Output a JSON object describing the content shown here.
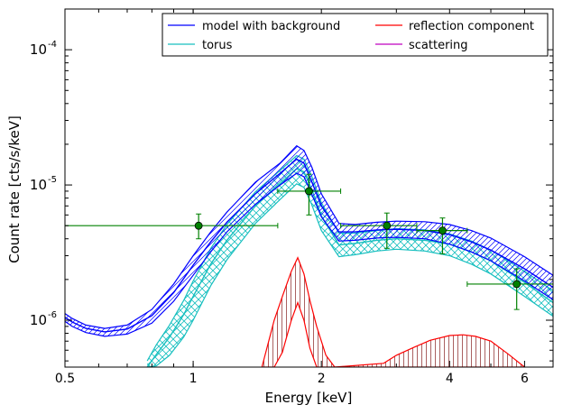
{
  "chart_data": {
    "type": "line",
    "xlabel": "Energy [keV]",
    "ylabel": "Count rate [cts/s/keV]",
    "xscale": "log",
    "yscale": "log",
    "xlim": [
      0.5,
      7.0
    ],
    "ylim": [
      4.5e-07,
      0.0002
    ],
    "x_ticks": [
      {
        "value": 0.5,
        "label": "0.5"
      },
      {
        "value": 1,
        "label": "1"
      },
      {
        "value": 2,
        "label": "2"
      },
      {
        "value": 4,
        "label": "4"
      },
      {
        "value": 6,
        "label": "6"
      }
    ],
    "y_ticks": [
      {
        "value": 1e-06,
        "base": "10",
        "exp": "-6"
      },
      {
        "value": 1e-05,
        "base": "10",
        "exp": "-5"
      },
      {
        "value": 0.0001,
        "base": "10",
        "exp": "-4"
      }
    ],
    "legend": {
      "position": "top-right",
      "columns": 2,
      "entries": [
        {
          "label": "model with background",
          "color": "#0000ff"
        },
        {
          "label": "reflection component",
          "color": "#ff0000"
        },
        {
          "label": "torus",
          "color": "#17bfbf"
        },
        {
          "label": "scattering",
          "color": "#bf00bf"
        }
      ]
    },
    "series": [
      {
        "key": "model",
        "legend_index": 0,
        "band_hatch": "diagonal",
        "x": [
          0.5,
          0.52,
          0.56,
          0.62,
          0.7,
          0.8,
          0.9,
          1.0,
          1.1,
          1.2,
          1.4,
          1.6,
          1.75,
          1.82,
          1.9,
          2.0,
          2.2,
          2.4,
          2.7,
          3.0,
          3.5,
          4.0,
          4.5,
          5.0,
          6.0,
          7.0
        ],
        "mid": [
          1.05e-06,
          9.7e-07,
          8.7e-07,
          8.2e-07,
          8.6e-07,
          1.08e-06,
          1.6e-06,
          2.55e-06,
          3.8e-06,
          5.3e-06,
          8.6e-06,
          1.22e-05,
          1.55e-05,
          1.45e-05,
          1.05e-05,
          7e-06,
          4.5e-06,
          4.5e-06,
          4.65e-06,
          4.7e-06,
          4.6e-06,
          4.3e-06,
          3.8e-06,
          3.3e-06,
          2.4e-06,
          1.75e-06
        ],
        "upper": [
          1.12e-06,
          1.03e-06,
          9.2e-07,
          8.7e-07,
          9.2e-07,
          1.2e-06,
          1.85e-06,
          3e-06,
          4.5e-06,
          6.3e-06,
          1.05e-05,
          1.45e-05,
          1.95e-05,
          1.8e-05,
          1.35e-05,
          8.6e-06,
          5.2e-06,
          5.1e-06,
          5.3e-06,
          5.4e-06,
          5.35e-06,
          5.1e-06,
          4.6e-06,
          4.05e-06,
          2.95e-06,
          2.15e-06
        ],
        "lower": [
          9.8e-07,
          9e-07,
          8.1e-07,
          7.6e-07,
          7.9e-07,
          9.5e-07,
          1.38e-06,
          2.15e-06,
          3.2e-06,
          4.5e-06,
          7.2e-06,
          1e-05,
          1.22e-05,
          1.15e-05,
          8.5e-06,
          5.8e-06,
          3.85e-06,
          3.9e-06,
          4.05e-06,
          4.1e-06,
          4e-06,
          3.65e-06,
          3.2e-06,
          2.75e-06,
          1.95e-06,
          1.42e-06
        ]
      },
      {
        "key": "torus",
        "legend_index": 2,
        "band_hatch": "cross",
        "x": [
          0.78,
          0.82,
          0.88,
          0.95,
          1.0,
          1.1,
          1.2,
          1.4,
          1.6,
          1.75,
          1.82,
          1.9,
          2.0,
          2.2,
          2.4,
          2.7,
          3.0,
          3.5,
          4.0,
          4.5,
          5.0,
          6.0,
          7.0
        ],
        "mid": [
          4.5e-07,
          5.6e-07,
          7.5e-07,
          1.1e-06,
          1.5e-06,
          2.6e-06,
          3.9e-06,
          7e-06,
          1.02e-05,
          1.32e-05,
          1.25e-05,
          9.2e-06,
          5.9e-06,
          3.6e-06,
          3.7e-06,
          3.9e-06,
          4e-06,
          3.9e-06,
          3.65e-06,
          3.2e-06,
          2.75e-06,
          1.9e-06,
          1.35e-06
        ],
        "upper": [
          5e-07,
          6.6e-07,
          9.2e-07,
          1.4e-06,
          1.95e-06,
          3.4e-06,
          5.1e-06,
          8.9e-06,
          1.28e-05,
          1.65e-05,
          1.55e-05,
          1.15e-05,
          7.4e-06,
          4.4e-06,
          4.4e-06,
          4.6e-06,
          4.75e-06,
          4.65e-06,
          4.35e-06,
          3.85e-06,
          3.3e-06,
          2.3e-06,
          1.65e-06
        ],
        "lower": [
          4.5e-07,
          4.6e-07,
          5.5e-07,
          7.5e-07,
          1e-06,
          1.8e-06,
          2.8e-06,
          5.2e-06,
          7.8e-06,
          1.02e-05,
          9.6e-06,
          7.1e-06,
          4.6e-06,
          2.95e-06,
          3.05e-06,
          3.25e-06,
          3.35e-06,
          3.25e-06,
          3e-06,
          2.6e-06,
          2.2e-06,
          1.5e-06,
          1.07e-06
        ]
      },
      {
        "key": "reflection",
        "legend_index": 1,
        "band_hatch": "vertical",
        "x": [
          1.45,
          1.55,
          1.62,
          1.7,
          1.76,
          1.82,
          1.88,
          1.95,
          2.05,
          2.15,
          2.8,
          3.0,
          3.3,
          3.6,
          4.0,
          4.3,
          4.6,
          5.0,
          5.5,
          6.0
        ],
        "upper": [
          4.5e-07,
          1e-06,
          1.5e-06,
          2.3e-06,
          2.9e-06,
          2.2e-06,
          1.4e-06,
          9e-07,
          5.5e-07,
          4.5e-07,
          4.8e-07,
          5.5e-07,
          6.3e-07,
          7.1e-07,
          7.7e-07,
          7.8e-07,
          7.6e-07,
          7e-07,
          5.6e-07,
          4.5e-07
        ],
        "lower": [
          4.5e-07,
          4.5e-07,
          5.8e-07,
          1e-06,
          1.35e-06,
          1e-06,
          6.2e-07,
          4.5e-07,
          4.5e-07,
          4.5e-07,
          4.5e-07,
          4.5e-07,
          4.5e-07,
          4.5e-07,
          4.5e-07,
          4.5e-07,
          4.5e-07,
          4.5e-07,
          4.5e-07,
          4.5e-07
        ]
      }
    ],
    "data_points": {
      "color": "#008000",
      "points": [
        {
          "x": 1.03,
          "y": 5e-06,
          "xerr": [
            0.5,
            1.58
          ],
          "yerr": [
            4e-06,
            6.1e-06
          ]
        },
        {
          "x": 1.87,
          "y": 9e-06,
          "xerr": [
            1.58,
            2.22
          ],
          "yerr": [
            6e-06,
            1.2e-05
          ]
        },
        {
          "x": 2.85,
          "y": 5e-06,
          "xerr": [
            2.22,
            3.35
          ],
          "yerr": [
            3.4e-06,
            6.2e-06
          ]
        },
        {
          "x": 3.85,
          "y": 4.6e-06,
          "xerr": [
            3.35,
            4.4
          ],
          "yerr": [
            3.1e-06,
            5.7e-06
          ]
        },
        {
          "x": 5.75,
          "y": 1.85e-06,
          "xerr": [
            4.4,
            7.0
          ],
          "yerr": [
            1.2e-06,
            2.4e-06
          ]
        }
      ]
    }
  }
}
